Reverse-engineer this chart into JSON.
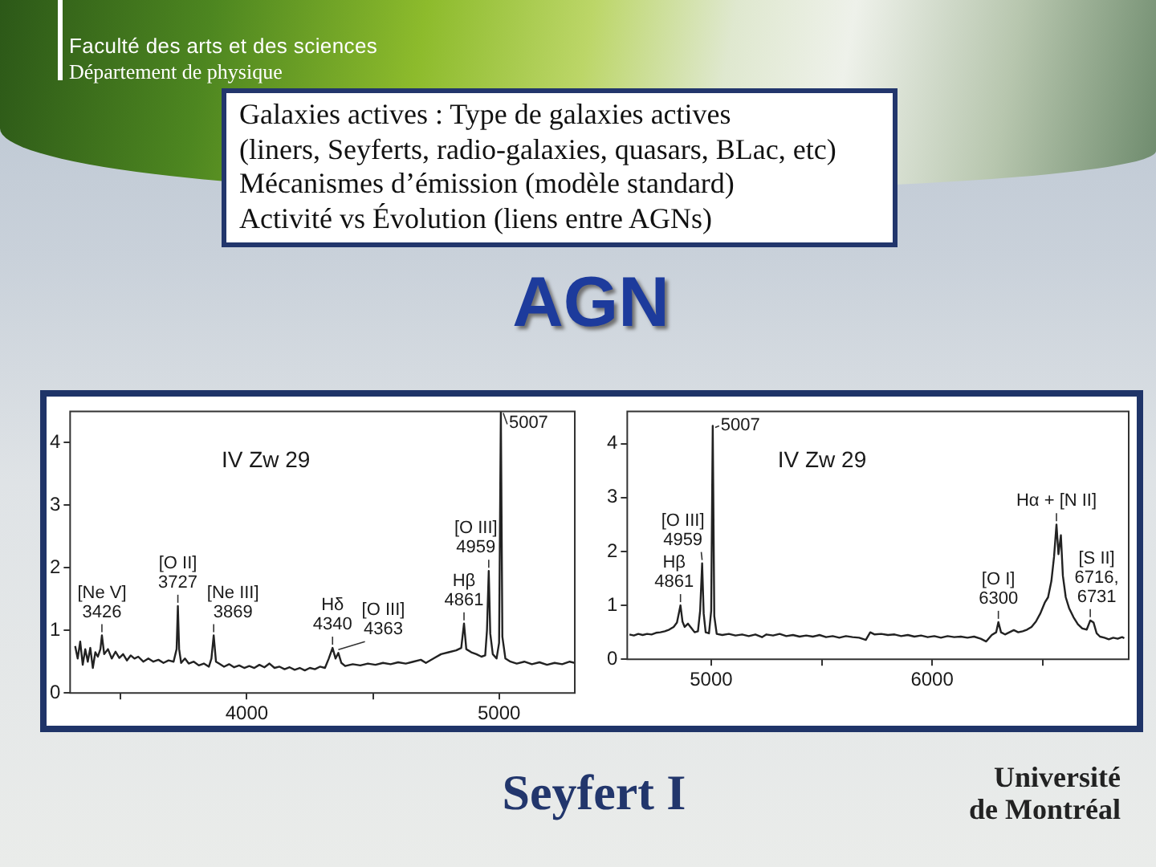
{
  "chart_data": [
    {
      "type": "other",
      "title": "AGN",
      "annotations": [
        "Faculté des arts et des sciences",
        "Département de physique",
        "Galaxies actives : Type de galaxies actives",
        "(liners, Seyferts, radio-galaxies, quasars, BLac, etc)",
        "Mécanismes d’émission (modèle standard)",
        "Activité vs Évolution (liens entre AGNs)"
      ]
    },
    {
      "type": "line",
      "title": "IV Zw 29",
      "color": "#222222",
      "marker": "none",
      "x": [
        3320,
        3330,
        3340,
        3350,
        3360,
        3370,
        3380,
        3390,
        3400,
        3410,
        3420,
        3426,
        3435,
        3450,
        3465,
        3480,
        3495,
        3510,
        3525,
        3540,
        3555,
        3570,
        3590,
        3610,
        3630,
        3650,
        3670,
        3690,
        3710,
        3722,
        3727,
        3732,
        3740,
        3755,
        3770,
        3790,
        3810,
        3830,
        3850,
        3860,
        3869,
        3878,
        3890,
        3910,
        3930,
        3950,
        3970,
        3990,
        4010,
        4030,
        4050,
        4070,
        4090,
        4110,
        4130,
        4150,
        4170,
        4190,
        4210,
        4230,
        4250,
        4270,
        4290,
        4310,
        4325,
        4340,
        4352,
        4363,
        4375,
        4390,
        4420,
        4450,
        4480,
        4510,
        4540,
        4570,
        4600,
        4630,
        4660,
        4690,
        4710,
        4740,
        4770,
        4800,
        4830,
        4850,
        4861,
        4870,
        4890,
        4910,
        4930,
        4945,
        4952,
        4959,
        4965,
        4975,
        4990,
        5000,
        5007,
        5013,
        5025,
        5045,
        5070,
        5100,
        5130,
        5160,
        5190,
        5220,
        5250,
        5280,
        5300
      ],
      "values": [
        0.75,
        0.55,
        0.82,
        0.45,
        0.7,
        0.5,
        0.72,
        0.4,
        0.65,
        0.58,
        0.7,
        0.92,
        0.62,
        0.7,
        0.55,
        0.66,
        0.56,
        0.62,
        0.52,
        0.6,
        0.55,
        0.58,
        0.5,
        0.55,
        0.5,
        0.53,
        0.48,
        0.52,
        0.5,
        0.7,
        1.39,
        0.7,
        0.48,
        0.55,
        0.47,
        0.5,
        0.44,
        0.47,
        0.42,
        0.55,
        0.92,
        0.5,
        0.47,
        0.42,
        0.46,
        0.41,
        0.44,
        0.4,
        0.43,
        0.4,
        0.45,
        0.41,
        0.47,
        0.4,
        0.42,
        0.38,
        0.41,
        0.37,
        0.4,
        0.36,
        0.4,
        0.38,
        0.42,
        0.4,
        0.55,
        0.72,
        0.55,
        0.64,
        0.48,
        0.43,
        0.46,
        0.44,
        0.47,
        0.45,
        0.48,
        0.46,
        0.49,
        0.47,
        0.5,
        0.53,
        0.48,
        0.55,
        0.62,
        0.65,
        0.68,
        0.72,
        1.11,
        0.7,
        0.65,
        0.62,
        0.58,
        0.6,
        1.0,
        1.95,
        0.95,
        0.62,
        0.55,
        0.8,
        4.5,
        0.9,
        0.55,
        0.5,
        0.47,
        0.5,
        0.46,
        0.49,
        0.45,
        0.48,
        0.46,
        0.5,
        0.48
      ],
      "xlim": [
        3300,
        5300
      ],
      "ylim": [
        0,
        4.5
      ],
      "xticks": [
        {
          "value": 3500,
          "label": null
        },
        4000,
        {
          "value": 4500,
          "label": null
        },
        5000
      ],
      "yticks": [
        0,
        1,
        2,
        3,
        4
      ],
      "annotations": [
        {
          "text": "[Ne V]\n3426",
          "x": 3426,
          "y": 0.92
        },
        {
          "text": "[O II]\n3727",
          "x": 3727,
          "y": 1.39
        },
        {
          "text": "[Ne III]\n3869",
          "x": 3869,
          "y": 0.92
        },
        {
          "text": "Hδ\n4340",
          "x": 4340,
          "y": 0.72
        },
        {
          "text": "[O III]\n4363",
          "x": 4363,
          "y": 0.64
        },
        {
          "text": "Hβ\n4861",
          "x": 4861,
          "y": 1.11
        },
        {
          "text": "[O III]\n4959",
          "x": 4959,
          "y": 1.95
        },
        {
          "text": "5007",
          "x": 5007,
          "y": 4.5
        }
      ]
    },
    {
      "type": "line",
      "title": "IV Zw 29",
      "color": "#222222",
      "marker": "none",
      "x": [
        4630,
        4650,
        4670,
        4690,
        4710,
        4730,
        4750,
        4770,
        4790,
        4810,
        4830,
        4845,
        4861,
        4870,
        4880,
        4895,
        4910,
        4925,
        4940,
        4950,
        4959,
        4966,
        4975,
        4990,
        5000,
        5007,
        5014,
        5025,
        5050,
        5080,
        5110,
        5140,
        5170,
        5200,
        5230,
        5250,
        5280,
        5310,
        5340,
        5370,
        5400,
        5430,
        5460,
        5490,
        5520,
        5550,
        5580,
        5610,
        5640,
        5670,
        5700,
        5720,
        5740,
        5770,
        5800,
        5830,
        5860,
        5890,
        5920,
        5950,
        5980,
        6010,
        6040,
        6070,
        6100,
        6130,
        6160,
        6190,
        6220,
        6245,
        6270,
        6290,
        6300,
        6312,
        6330,
        6350,
        6370,
        6390,
        6410,
        6430,
        6450,
        6470,
        6490,
        6510,
        6525,
        6540,
        6552,
        6563,
        6572,
        6583,
        6592,
        6605,
        6620,
        6640,
        6660,
        6680,
        6700,
        6716,
        6731,
        6745,
        6760,
        6780,
        6800,
        6820,
        6840,
        6860,
        6870
      ],
      "values": [
        0.46,
        0.44,
        0.47,
        0.45,
        0.47,
        0.46,
        0.49,
        0.5,
        0.52,
        0.55,
        0.6,
        0.68,
        1.0,
        0.7,
        0.6,
        0.66,
        0.58,
        0.5,
        0.52,
        0.9,
        1.78,
        0.85,
        0.5,
        0.48,
        0.9,
        4.33,
        0.8,
        0.47,
        0.45,
        0.47,
        0.44,
        0.46,
        0.43,
        0.46,
        0.41,
        0.46,
        0.44,
        0.47,
        0.43,
        0.45,
        0.42,
        0.44,
        0.42,
        0.45,
        0.41,
        0.43,
        0.4,
        0.43,
        0.41,
        0.4,
        0.36,
        0.5,
        0.46,
        0.47,
        0.45,
        0.46,
        0.43,
        0.45,
        0.42,
        0.44,
        0.41,
        0.43,
        0.4,
        0.43,
        0.41,
        0.42,
        0.4,
        0.42,
        0.38,
        0.33,
        0.45,
        0.5,
        0.69,
        0.5,
        0.46,
        0.5,
        0.54,
        0.5,
        0.52,
        0.55,
        0.6,
        0.7,
        0.85,
        1.05,
        1.15,
        1.45,
        1.9,
        2.5,
        1.95,
        2.3,
        1.55,
        1.15,
        0.95,
        0.78,
        0.65,
        0.57,
        0.55,
        0.72,
        0.68,
        0.48,
        0.42,
        0.4,
        0.37,
        0.4,
        0.38,
        0.41,
        0.39
      ],
      "xlim": [
        4620,
        6890
      ],
      "ylim": [
        0,
        4.6
      ],
      "xticks": [
        5000,
        {
          "value": 5500,
          "label": null
        },
        6000,
        {
          "value": 6500,
          "label": null
        }
      ],
      "yticks": [
        0,
        1,
        2,
        3,
        4
      ],
      "annotations": [
        {
          "text": "Hβ\n4861",
          "x": 4861,
          "y": 1.0
        },
        {
          "text": "[O III]\n4959",
          "x": 4959,
          "y": 1.78
        },
        {
          "text": "5007",
          "x": 5007,
          "y": 4.33
        },
        {
          "text": "[O I]\n6300",
          "x": 6300,
          "y": 0.69
        },
        {
          "text": "Hα + [N II]",
          "x": 6563,
          "y": 2.5
        },
        {
          "text": "[S II]\n6716,\n6731",
          "x": 6716,
          "y": 0.72
        }
      ]
    },
    {
      "type": "other",
      "title": "Seyfert I",
      "annotations": [
        "Université de Montréal"
      ]
    }
  ]
}
